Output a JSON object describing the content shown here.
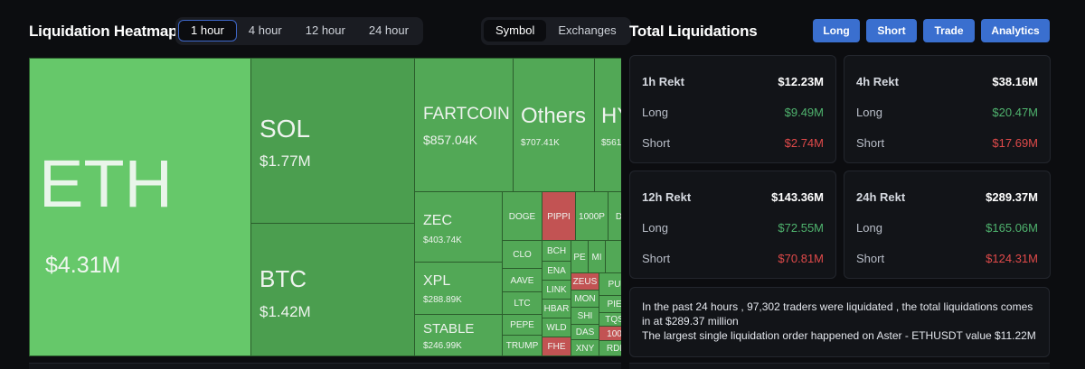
{
  "heatmap": {
    "title": "Liquidation Heatmap",
    "ranges": [
      "1 hour",
      "4 hour",
      "12 hour",
      "24 hour"
    ],
    "active_range": "1 hour",
    "views": [
      "Symbol",
      "Exchanges"
    ],
    "active_view": "Symbol",
    "tiles": {
      "eth": {
        "name": "ETH",
        "value": "$4.31M"
      },
      "sol": {
        "name": "SOL",
        "value": "$1.77M"
      },
      "btc": {
        "name": "BTC",
        "value": "$1.42M"
      },
      "fartcoin": {
        "name": "FARTCOIN",
        "value": "$857.04K"
      },
      "others": {
        "name": "Others",
        "value": "$707.41K"
      },
      "hype": {
        "name": "HY",
        "value": "$561"
      },
      "zec": {
        "name": "ZEC",
        "value": "$403.74K"
      },
      "xpl": {
        "name": "XPL",
        "value": "$288.89K"
      },
      "stable": {
        "name": "STABLE",
        "value": "$246.99K"
      },
      "small": {
        "doge": "DOGE",
        "pippin": "PIPPI",
        "k1000": "1000P",
        "d": "D",
        "clo": "CLO",
        "bch": "BCH",
        "pe": "PE",
        "mi": "MI",
        "aave": "AAVE",
        "ena": "ENA",
        "zeus": "ZEUS",
        "pu": "PU",
        "ltc": "LTC",
        "link": "LINK",
        "mon": "MON",
        "pie": "PIE",
        "hbar": "HBAR",
        "shi": "SHI",
        "pepe": "PEPE",
        "wld": "WLD",
        "tqs": "TQS",
        "das": "DAS",
        "n100": "100",
        "trump": "TRUMP",
        "fhe": "FHE",
        "xny": "XNY",
        "rdi": "RDI"
      }
    }
  },
  "total": {
    "title": "Total Liquidations",
    "buttons": [
      "Long",
      "Short",
      "Trade",
      "Analytics"
    ],
    "cards": [
      {
        "label": "1h Rekt",
        "total": "$12.23M",
        "long_label": "Long",
        "long": "$9.49M",
        "short_label": "Short",
        "short": "$2.74M"
      },
      {
        "label": "4h Rekt",
        "total": "$38.16M",
        "long_label": "Long",
        "long": "$20.47M",
        "short_label": "Short",
        "short": "$17.69M"
      },
      {
        "label": "12h Rekt",
        "total": "$143.36M",
        "long_label": "Long",
        "long": "$72.55M",
        "short_label": "Short",
        "short": "$70.81M"
      },
      {
        "label": "24h Rekt",
        "total": "$289.37M",
        "long_label": "Long",
        "long": "$165.06M",
        "short_label": "Short",
        "short": "$124.31M"
      }
    ],
    "summary_line1": "In the past 24 hours , 97,302 traders were liquidated , the total liquidations comes in at $289.37 million",
    "summary_line2": "The largest single liquidation order happened on Aster - ETHUSDT value $11.22M",
    "colors": {
      "long": "#4fb36e",
      "short": "#e04a4a",
      "accent": "#3a6fcf"
    }
  }
}
